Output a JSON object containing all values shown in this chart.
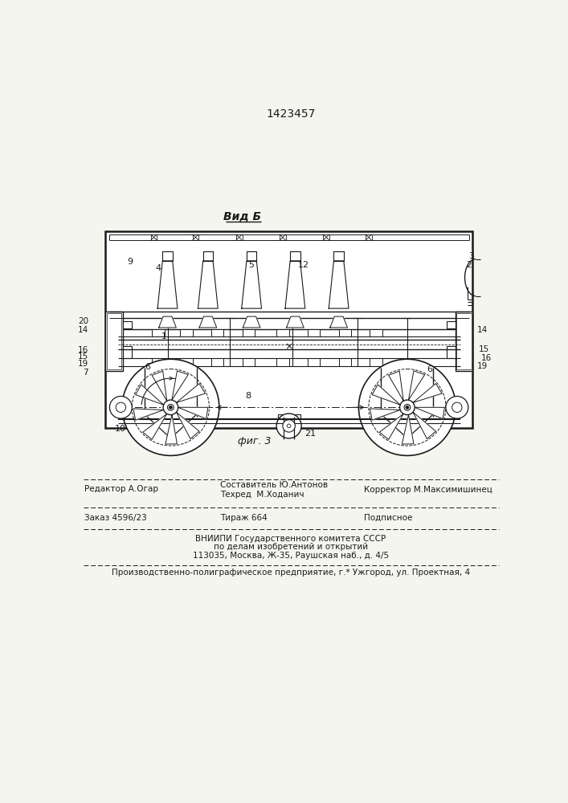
{
  "title": "1423457",
  "view_label": "Вид Б",
  "fig_label": "фиг. 3",
  "bg_color": "#f5f5f0",
  "line_color": "#1a1a1a",
  "text_color": "#1a1a1a",
  "footer": {
    "line1_left": "Редактор А.Огар",
    "line1_mid_top": "Составитель Ю.Антонов",
    "line1_mid_bot": "Техред  М.Ходанич",
    "line1_right": "Корректор М.Максимишинец",
    "line2_left": "Заказ 4596/23",
    "line2_mid": "Тираж 664",
    "line2_right": "Подписное",
    "line3": "ВНИИПИ Государственного комитета СССР",
    "line4": "по делам изобретений и открытий",
    "line5": "113035, Москва, Ж-35, Раушская наб., д. 4/5",
    "line6": "Производственно-полиграфическое предприятие, г.* Ужгород, ул. Проектная, 4"
  }
}
